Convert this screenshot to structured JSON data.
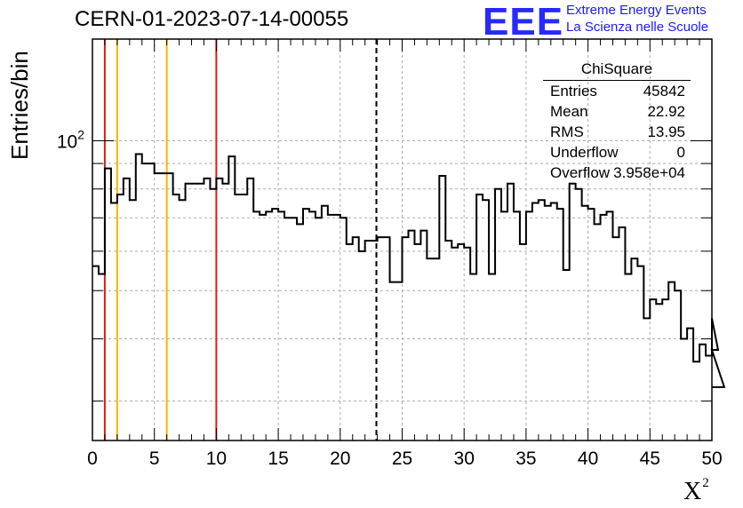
{
  "title": "CERN-01-2023-07-14-00055",
  "logo": {
    "mark": "EEE",
    "line1": "Extreme Energy Events",
    "line2": "La Scienza nelle Scuole"
  },
  "stats": {
    "name": "ChiSquare",
    "rows": [
      {
        "key": "Entries",
        "value": "45842"
      },
      {
        "key": "Mean",
        "value": "22.92"
      },
      {
        "key": "RMS",
        "value": "13.95"
      },
      {
        "key": "Underflow",
        "value": "0"
      },
      {
        "key": "Overflow",
        "value": "3.958e+04"
      }
    ]
  },
  "chart_data": {
    "type": "histogram-step",
    "xlabel": "X",
    "xlabel_sup": "2",
    "ylabel": "Entries/bin",
    "xlim": [
      0,
      50
    ],
    "ylim": [
      25,
      160
    ],
    "yscale": "log",
    "xticks": [
      0,
      5,
      10,
      15,
      20,
      25,
      30,
      35,
      40,
      45,
      50
    ],
    "yticks": [
      {
        "value": 100,
        "label": "10",
        "sup": "2"
      }
    ],
    "grid": true,
    "bin_width": 0.5,
    "values": [
      56,
      54,
      88,
      75,
      78,
      84,
      76,
      94,
      90,
      90,
      86,
      86,
      86,
      78,
      76,
      82,
      82,
      82,
      84,
      80,
      84,
      82,
      93,
      78,
      78,
      84,
      72,
      71,
      72,
      73,
      72,
      70,
      70,
      68,
      73,
      72,
      70,
      74,
      71,
      71,
      70,
      62,
      64,
      60,
      63,
      63,
      64,
      64,
      52,
      52,
      64,
      66,
      62,
      66,
      58,
      58,
      85,
      63,
      61,
      62,
      61,
      54,
      78,
      76,
      54,
      80,
      72,
      82,
      72,
      62,
      72,
      75,
      76,
      74,
      75,
      73,
      55,
      82,
      80,
      74,
      73,
      68,
      71,
      72,
      64,
      67,
      54,
      58,
      56,
      44,
      48,
      47,
      48,
      52,
      50,
      40,
      42,
      36,
      39,
      37,
      44,
      38,
      32
    ],
    "vlines": [
      {
        "x": 1,
        "color": "#e31a1c",
        "style": "solid"
      },
      {
        "x": 2,
        "color": "#f0b800",
        "style": "solid"
      },
      {
        "x": 6,
        "color": "#f0b800",
        "style": "solid"
      },
      {
        "x": 10,
        "color": "#e31a1c",
        "style": "solid"
      },
      {
        "x": 22.92,
        "color": "#000000",
        "style": "dashed"
      }
    ]
  }
}
